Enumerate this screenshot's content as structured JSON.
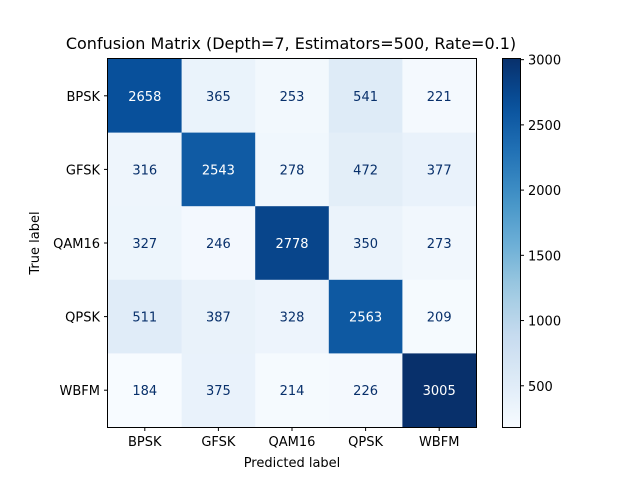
{
  "chart_data": {
    "type": "heatmap",
    "title": "Confusion Matrix (Depth=7, Estimators=500, Rate=0.1)",
    "xlabel": "Predicted label",
    "ylabel": "True label",
    "categories": [
      "BPSK",
      "GFSK",
      "QAM16",
      "QPSK",
      "WBFM"
    ],
    "rows": [
      "BPSK",
      "GFSK",
      "QAM16",
      "QPSK",
      "WBFM"
    ],
    "values": [
      [
        2658,
        365,
        253,
        541,
        221
      ],
      [
        316,
        2543,
        278,
        472,
        377
      ],
      [
        327,
        246,
        2778,
        350,
        273
      ],
      [
        511,
        387,
        328,
        2563,
        209
      ],
      [
        184,
        375,
        214,
        226,
        3005
      ]
    ],
    "colormap": "Blues",
    "colorbar": {
      "min": 184,
      "max": 3005,
      "ticks": [
        500,
        1000,
        1500,
        2000,
        2500,
        3000
      ],
      "tick_labels": [
        "500",
        "1000",
        "1500",
        "2000",
        "2500",
        "3000"
      ]
    },
    "text_color_dark": "#08306b",
    "text_color_light": "#ffffff",
    "grid": false
  }
}
